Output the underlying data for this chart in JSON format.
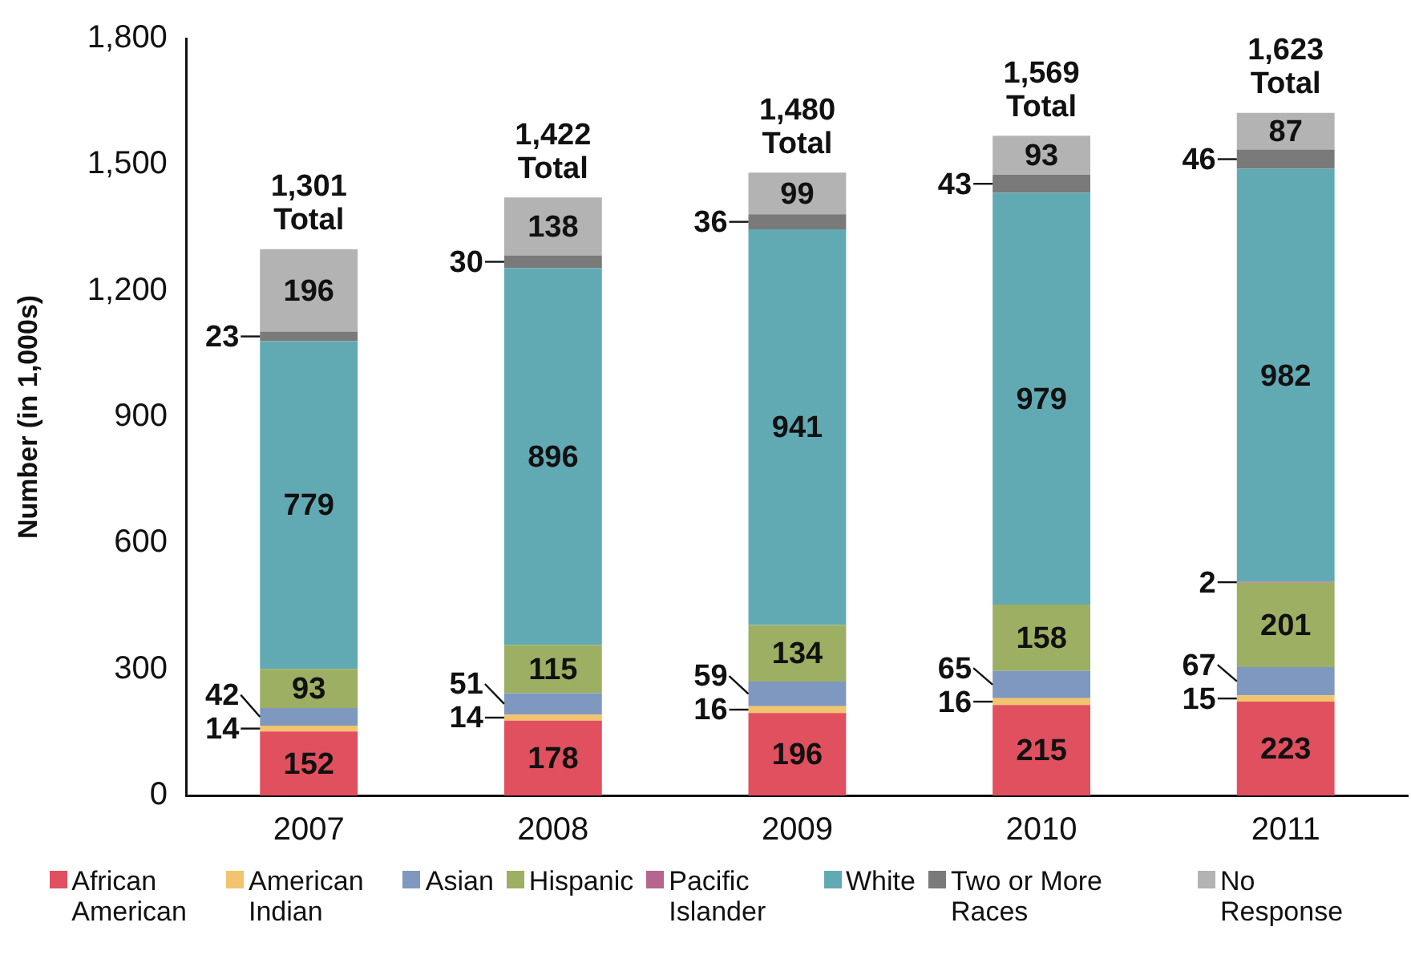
{
  "chart_data": {
    "type": "bar",
    "stacked": true,
    "ylabel": "Number (in 1,000s)",
    "categories": [
      "2007",
      "2008",
      "2009",
      "2010",
      "2011"
    ],
    "ylim": [
      0,
      1800
    ],
    "yticks": [
      0,
      {
        "value": 300,
        "label": "300"
      },
      {
        "value": 600,
        "label": "600"
      },
      {
        "value": 900,
        "label": "900"
      },
      {
        "value": 1200,
        "label": "1,200"
      },
      {
        "value": 1500,
        "label": "1,500"
      },
      {
        "value": 1800,
        "label": "1,800"
      }
    ],
    "grid": false,
    "legend": "bottom",
    "data_labels": true,
    "totals": [
      "1,301\nTotal",
      "1,422\nTotal",
      "1,480\nTotal",
      "1,569\nTotal",
      "1,623\nTotal"
    ],
    "series": [
      {
        "name": "African American",
        "color": "#e0505f",
        "values": [
          152,
          178,
          196,
          215,
          223
        ]
      },
      {
        "name": "American Indian",
        "color": "#f2c46d",
        "values": [
          14,
          14,
          16,
          16,
          15
        ]
      },
      {
        "name": "Asian",
        "color": "#7f98bf",
        "values": [
          42,
          51,
          59,
          65,
          67
        ]
      },
      {
        "name": "Hispanic",
        "color": "#9caf63",
        "values": [
          93,
          115,
          134,
          158,
          201
        ]
      },
      {
        "name": "Pacific Islander",
        "color": "#b5668f",
        "values": [
          null,
          null,
          null,
          null,
          2
        ]
      },
      {
        "name": "White",
        "color": "#62aab3",
        "values": [
          779,
          896,
          941,
          979,
          982
        ]
      },
      {
        "name": "Two or More Races",
        "color": "#7a7a7a",
        "values": [
          23,
          30,
          36,
          43,
          46
        ]
      },
      {
        "name": "No Response",
        "color": "#b3b3b3",
        "values": [
          196,
          138,
          99,
          93,
          87
        ]
      }
    ]
  }
}
